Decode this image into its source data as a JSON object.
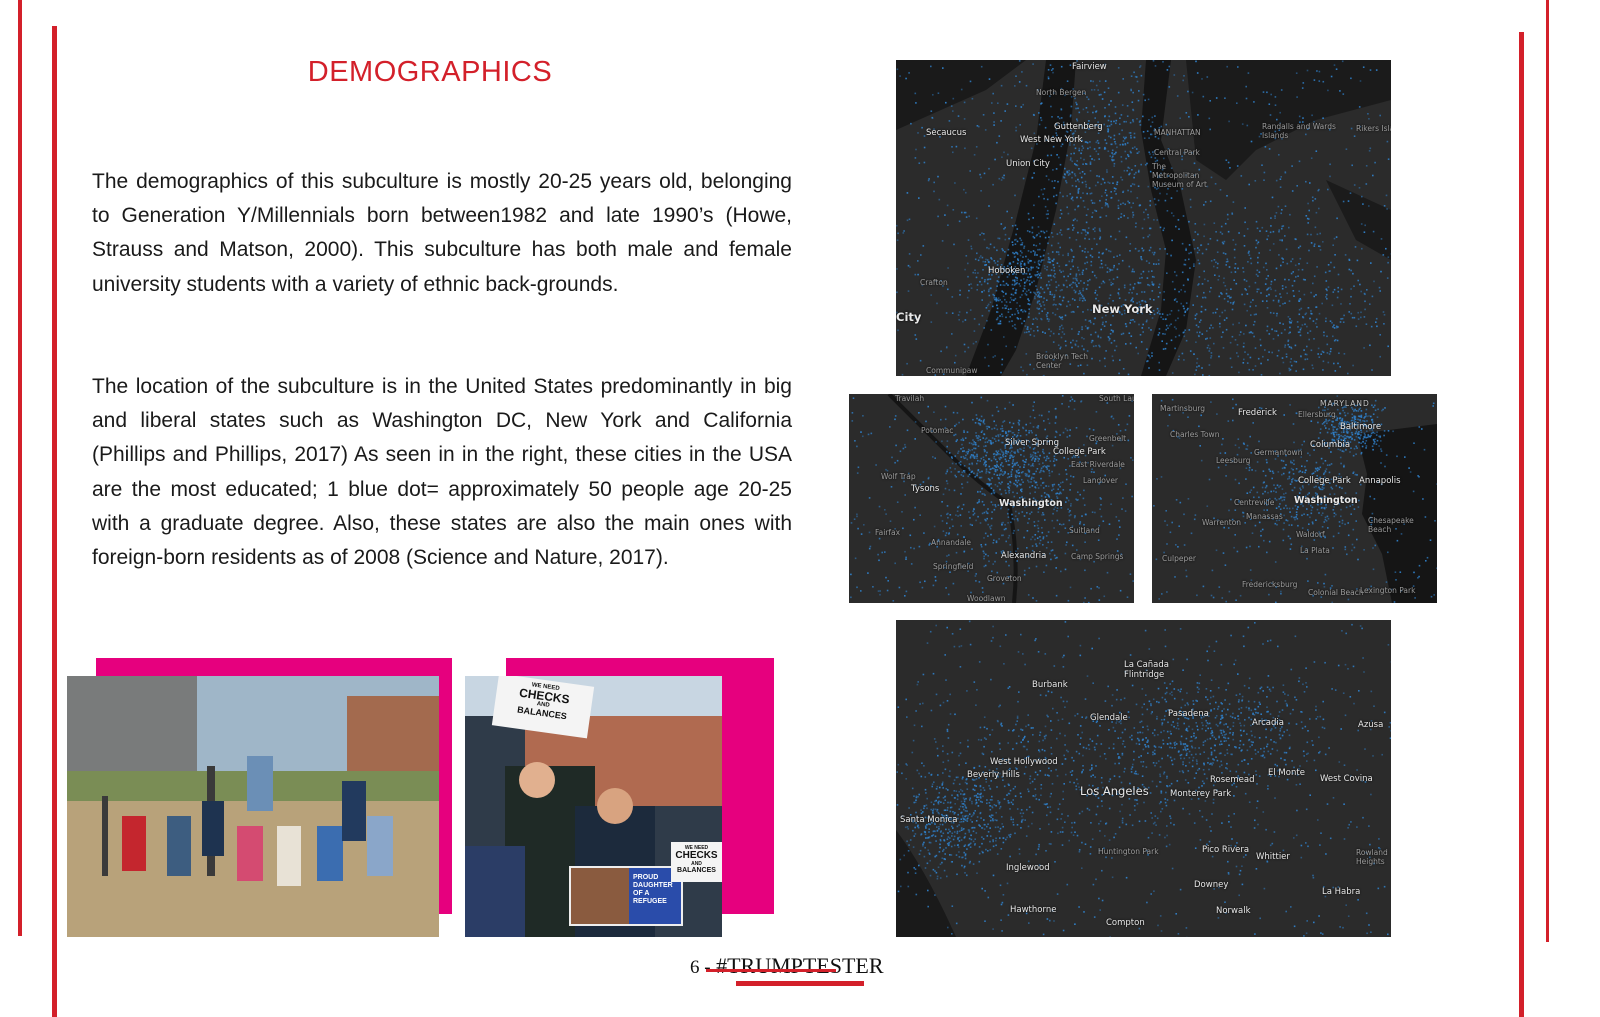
{
  "page": {
    "title": "DEMOGRAPHICS",
    "paragraphs": [
      "The demographics of this subculture is mostly 20-25 years old, belonging to Generation Y/Millennials born between1982 and late 1990’s (Howe, Strauss and Matson, 2000). This subculture has both male and female university students with a variety of ethnic back-grounds.",
      "The location of the subculture is in the United States predominantly in big and liberal states such as Washington DC, New York and California (Phillips and Phillips, 2017) As seen in in the right, these cities in the USA are the most educated; 1 blue dot= approximately 50 people age 20-25 with a graduate degree. Also, these states are also the main ones with foreign-born residents as of 2008 (Science and Nature, 2017)."
    ],
    "footer": {
      "page_number": "6 -",
      "brand": "#TRUMPTESTER"
    }
  },
  "colors": {
    "accent_red": "#d3202a",
    "pink": "#e6007e",
    "map_bg": "#2b2b2b",
    "dot_blue": "#2f7fc8"
  },
  "maps": {
    "nyc": {
      "labels": [
        "Fairview",
        "North Bergen",
        "Secaucus",
        "Guttenberg",
        "West New York",
        "Union City",
        "MANHATTAN",
        "Central Park",
        "Randalls and Wards Islands",
        "Rikers Island",
        "The Metropolitan Museum of Art",
        "Hoboken",
        "Crafton",
        "City",
        "New York",
        "Brooklyn Tech Center",
        "Communipaw"
      ]
    },
    "dc1": {
      "labels": [
        "Travilah",
        "South Laurel",
        "Potomac",
        "Silver Spring",
        "College Park",
        "Greenbelt",
        "East Riverdale",
        "Wolf Trap",
        "Tysons",
        "Landover",
        "Washington",
        "Suitland",
        "Fairfax",
        "Annandale",
        "Alexandria",
        "Camp Springs",
        "Springfield",
        "Groveton",
        "Woodlawn"
      ]
    },
    "dc2": {
      "labels": [
        "Martinsburg",
        "Frederick",
        "Ellersburg",
        "MARYLAND",
        "Charles Town",
        "Baltimore",
        "Leesburg",
        "Germantown",
        "Columbia",
        "College Park",
        "Annapolis",
        "Centreville",
        "Washington",
        "Manassas",
        "Warrenton",
        "Chesapeake Beach",
        "Waldorf",
        "La Plata",
        "Culpeper",
        "Fredericksburg",
        "Colonial Beach",
        "Lexington Park"
      ]
    },
    "la": {
      "labels": [
        "La Cañada Flintridge",
        "Burbank",
        "Glendale",
        "Pasadena",
        "Arcadia",
        "Azusa",
        "West Hollywood",
        "Beverly Hills",
        "Rosemead",
        "El Monte",
        "West Covina",
        "Los Angeles",
        "Monterey Park",
        "Santa Monica",
        "Huntington Park",
        "Pico Rivera",
        "Whittier",
        "Rowland Heights",
        "Inglewood",
        "Downey",
        "La Habra",
        "Hawthorne",
        "Norwalk",
        "Compton"
      ]
    }
  },
  "photos": {
    "left": {
      "subject": "students seated on lawn outdoors"
    },
    "right": {
      "sign_top": [
        "WE NEED",
        "CHECKS",
        "AND",
        "BALANCES"
      ],
      "sign_bottom": [
        "PROUD",
        "DAUGHTER",
        "OF A",
        "REFUGEE"
      ],
      "sign_side": [
        "WE NEED",
        "CHECKS",
        "AND",
        "BALANCES"
      ]
    }
  }
}
